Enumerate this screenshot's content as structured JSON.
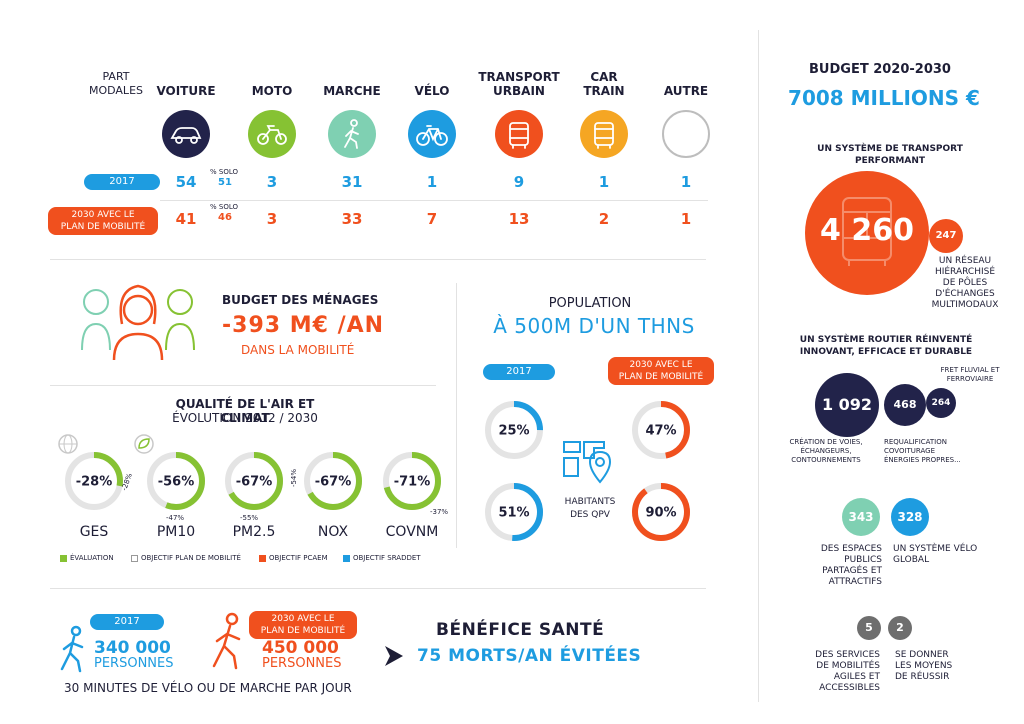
{
  "modal": {
    "label_line1": "PART",
    "label_line2": "MODALES",
    "headers": [
      {
        "line1": "VOITURE",
        "line2": ""
      },
      {
        "line1": "MOTO",
        "line2": ""
      },
      {
        "line1": "MARCHE",
        "line2": ""
      },
      {
        "line1": "VÉLO",
        "line2": ""
      },
      {
        "line1": "TRANSPORT",
        "line2": "URBAIN"
      },
      {
        "line1": "CAR",
        "line2": "TRAIN"
      },
      {
        "line1": "AUTRE",
        "line2": ""
      }
    ],
    "icons": [
      "car-icon",
      "motorbike-icon",
      "pedestrian-icon",
      "bicycle-icon",
      "bus-icon",
      "train-icon",
      "empty-circle-icon"
    ],
    "colors": [
      "#22234a",
      "#86c233",
      "#7fd0b2",
      "#1e9ce0",
      "#f0501e",
      "#f5a623",
      "#ffffff"
    ],
    "row2017": {
      "label": "2017",
      "values": [
        "54",
        "3",
        "31",
        "1",
        "9",
        "1",
        "1"
      ],
      "solo_label": "% SOLO",
      "solo_value": "51"
    },
    "row2030": {
      "label_line1": "2030 AVEC LE",
      "label_line2": "PLAN DE MOBILITÉ",
      "values": [
        "41",
        "3",
        "33",
        "7",
        "13",
        "2",
        "1"
      ],
      "solo_label": "% SOLO",
      "solo_value": "46"
    }
  },
  "household": {
    "title": "BUDGET DES MÉNAGES",
    "value": "-393 M€ /AN",
    "subtitle": "DANS LA MOBILITÉ"
  },
  "air": {
    "title": "QUALITÉ DE L'AIR ET CLIMAT",
    "subtitle": "ÉVOLUTION 2012 / 2030",
    "pollutants": [
      {
        "name": "GES",
        "value": "-28%",
        "fraction": 0.28,
        "side": "-28%"
      },
      {
        "name": "PM10",
        "value": "-56%",
        "fraction": 0.56,
        "side": "-47%"
      },
      {
        "name": "PM2.5",
        "value": "-67%",
        "fraction": 0.67,
        "side": "-55%"
      },
      {
        "name": "NOX",
        "value": "-67%",
        "fraction": 0.67,
        "side": "-54%"
      },
      {
        "name": "COVNM",
        "value": "-71%",
        "fraction": 0.71,
        "side": "-37%"
      }
    ],
    "legend": [
      "ÉVALUATION",
      "OBJECTIF PLAN DE MOBILITÉ",
      "OBJECTIF PCAEM",
      "OBJECTIF SRADDET"
    ],
    "legend_colors": [
      "#86c233",
      "#ffffff",
      "#f0501e",
      "#1e9ce0"
    ]
  },
  "population": {
    "title": "POPULATION",
    "value": "À 500M D'UN THNS",
    "pill2017": "2017",
    "pill2030_line1": "2030 AVEC LE",
    "pill2030_line2": "PLAN DE MOBILITÉ",
    "rings": [
      {
        "value": "25%",
        "fraction": 0.25,
        "color": "#1e9ce0"
      },
      {
        "value": "51%",
        "fraction": 0.51,
        "color": "#1e9ce0"
      },
      {
        "value": "47%",
        "fraction": 0.47,
        "color": "#f0501e"
      },
      {
        "value": "90%",
        "fraction": 0.9,
        "color": "#f0501e"
      }
    ],
    "qpv_line1": "HABITANTS",
    "qpv_line2": "DES QPV"
  },
  "health": {
    "pill2017": "2017",
    "count2017": "340 000",
    "persons2017": "PERSONNES",
    "pill2030_line1": "2030 AVEC LE",
    "pill2030_line2": "PLAN DE MOBILITÉ",
    "count2030": "450 000",
    "persons2030": "PERSONNES",
    "caption": "30 MINUTES DE VÉLO OU DE MARCHE PAR JOUR",
    "benefit_title": "BÉNÉFICE SANTÉ",
    "benefit_value": "75 MORTS/AN ÉVITÉES"
  },
  "budget": {
    "title": "BUDGET 2020-2030",
    "total": "7008 MILLIONS €",
    "transport_title_line1": "UN SYSTÈME DE TRANSPORT",
    "transport_title_line2": "PERFORMANT",
    "transport_value": "4 260",
    "pole_value": "247",
    "pole_text": [
      "UN RÉSEAU",
      "HIÉRARCHISÉ",
      "DE PÔLES",
      "D'ÉCHANGES",
      "MULTIMODAUX"
    ],
    "road_title_line1": "UN SYSTÈME ROUTIER RÉINVENTÉ",
    "road_title_line2": "INNOVANT, EFFICACE ET DURABLE",
    "road_values": [
      "1 092",
      "468",
      "264"
    ],
    "fret_line1": "FRET FLUVIAL ET",
    "fret_line2": "FERROVIAIRE",
    "road_left": [
      "CRÉATION DE VOIES,",
      "ÉCHANGEURS,",
      "CONTOURNEMENTS"
    ],
    "road_right": [
      "REQUALIFICATION",
      "COVOITURAGE",
      "ÉNERGIES PROPRES..."
    ],
    "public_value": "343",
    "public_text": [
      "DES ESPACES",
      "PUBLICS",
      "PARTAGÉS ET",
      "ATTRACTIFS"
    ],
    "velo_value": "328",
    "velo_text": [
      "UN SYSTÈME VÉLO",
      "GLOBAL"
    ],
    "services_value": "5",
    "services_text": [
      "DES SERVICES",
      "DE MOBILITÉS",
      "AGILES ET",
      "ACCESSIBLES"
    ],
    "means_value": "2",
    "means_text": [
      "SE DONNER",
      "LES MOYENS",
      "DE RÉUSSIR"
    ]
  }
}
